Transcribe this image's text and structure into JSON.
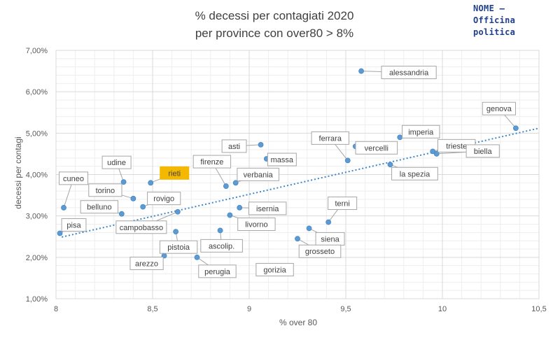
{
  "brand": {
    "line1": "NOME  –",
    "line2": "Officina",
    "line3": "politica"
  },
  "chart_data": {
    "type": "scatter",
    "title_lines": [
      "% decessi per contagiati 2020",
      "per province con over80 > 8%"
    ],
    "xlabel": "% over 80",
    "ylabel": "decessi per contagi",
    "xlim": [
      8,
      10.5
    ],
    "ylim": [
      0.01,
      0.07
    ],
    "x_ticks": [
      "8",
      "8,5",
      "9",
      "9,5",
      "10",
      "10,5"
    ],
    "y_ticks": [
      "1,00%",
      "2,00%",
      "3,00%",
      "4,00%",
      "5,00%",
      "6,00%",
      "7,00%"
    ],
    "grid": true,
    "trendline": {
      "type": "linear",
      "x": [
        8.03,
        10.5
      ],
      "y": [
        0.0249,
        0.0512
      ]
    },
    "points": [
      {
        "label": "alessandria",
        "x": 9.58,
        "y": 0.065
      },
      {
        "label": "genova",
        "x": 10.38,
        "y": 0.0512
      },
      {
        "label": "imperia",
        "x": 9.78,
        "y": 0.049
      },
      {
        "label": "trieste",
        "x": 9.95,
        "y": 0.0456
      },
      {
        "label": "biella",
        "x": 9.97,
        "y": 0.045
      },
      {
        "label": "ferrara",
        "x": 9.51,
        "y": 0.0434
      },
      {
        "label": "vercelli",
        "x": 9.55,
        "y": 0.0468
      },
      {
        "label": "la spezia",
        "x": 9.73,
        "y": 0.0424
      },
      {
        "label": "asti",
        "x": 9.06,
        "y": 0.0472
      },
      {
        "label": "massa",
        "x": 9.09,
        "y": 0.0438
      },
      {
        "label": "firenze",
        "x": 8.88,
        "y": 0.0372
      },
      {
        "label": "verbania",
        "x": 8.93,
        "y": 0.038
      },
      {
        "label": "udine",
        "x": 8.35,
        "y": 0.0382
      },
      {
        "label": "rieti",
        "x": 8.49,
        "y": 0.038,
        "highlight": true
      },
      {
        "label": "cuneo",
        "x": 8.04,
        "y": 0.032
      },
      {
        "label": "torino",
        "x": 8.4,
        "y": 0.0342
      },
      {
        "label": "rovigo",
        "x": 8.45,
        "y": 0.0322
      },
      {
        "label": "belluno",
        "x": 8.34,
        "y": 0.0305
      },
      {
        "label": "pisa",
        "x": 8.02,
        "y": 0.0258
      },
      {
        "label": "campobasso",
        "x": 8.63,
        "y": 0.031
      },
      {
        "label": "isernia",
        "x": 8.95,
        "y": 0.032
      },
      {
        "label": "livorno",
        "x": 8.9,
        "y": 0.0302
      },
      {
        "label": "terni",
        "x": 9.41,
        "y": 0.0285
      },
      {
        "label": "siena",
        "x": 9.31,
        "y": 0.027
      },
      {
        "label": "pistoia",
        "x": 8.62,
        "y": 0.0262
      },
      {
        "label": "ascolip.",
        "x": 8.85,
        "y": 0.0265
      },
      {
        "label": "grosseto",
        "x": 9.25,
        "y": 0.0245
      },
      {
        "label": "arezzo",
        "x": 8.56,
        "y": 0.0204
      },
      {
        "label": "perugia",
        "x": 8.73,
        "y": 0.02
      },
      {
        "label": "gorizia",
        "x": 9.06,
        "y": 0.0177
      }
    ],
    "colors": {
      "point": "#5b9bd5",
      "trend": "#3f86c8",
      "highlight": "#f5b800",
      "grid": "#d9d9d9"
    }
  }
}
